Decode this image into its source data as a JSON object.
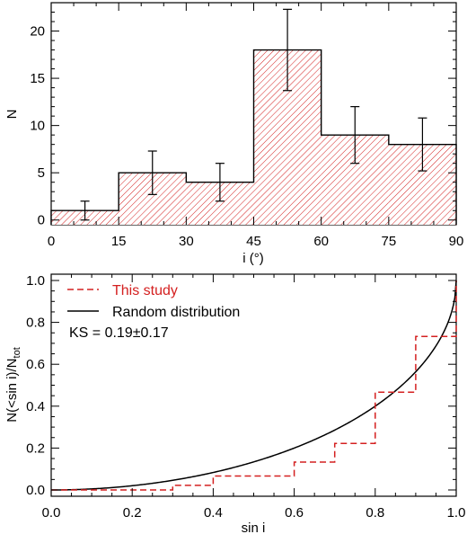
{
  "colors": {
    "accent": "#d42020",
    "axis": "#000000",
    "background": "#ffffff"
  },
  "chart_data": [
    {
      "type": "bar",
      "subtype": "histogram",
      "bins": [
        [
          0,
          15
        ],
        [
          15,
          30
        ],
        [
          30,
          45
        ],
        [
          45,
          60
        ],
        [
          60,
          75
        ],
        [
          75,
          90
        ]
      ],
      "values": [
        1,
        5,
        4,
        18,
        9,
        8
      ],
      "errors": [
        1.0,
        2.3,
        2.0,
        4.3,
        3.0,
        2.8
      ],
      "fill": "red diagonal hatch",
      "xlabel": "i (°)",
      "ylabel": "N",
      "xlim": [
        0,
        90
      ],
      "ylim": [
        -0.5,
        23
      ],
      "xticks": [
        "0",
        "15",
        "30",
        "45",
        "60",
        "75",
        "90"
      ],
      "yticks": [
        "0",
        "5",
        "10",
        "15",
        "20"
      ]
    },
    {
      "type": "line",
      "xlabel": "sin i",
      "ylabel_main": "N(<sin i)/N",
      "ylabel_sub": "tot",
      "xlim": [
        0,
        1
      ],
      "ylim": [
        -0.03,
        1.03
      ],
      "xticks": [
        "0.0",
        "0.2",
        "0.4",
        "0.6",
        "0.8",
        "1.0"
      ],
      "yticks": [
        "0.0",
        "0.2",
        "0.4",
        "0.6",
        "0.8",
        "1.0"
      ],
      "legend_position": "top-left",
      "series": [
        {
          "name": "This study",
          "style": "dashed-step",
          "color": "#d42020",
          "x": [
            0.0,
            0.2,
            0.3,
            0.4,
            0.6,
            0.7,
            0.8,
            0.9,
            1.0
          ],
          "y": [
            0.0,
            0.0,
            0.0222,
            0.0667,
            0.133,
            0.222,
            0.467,
            0.733,
            1.0
          ]
        },
        {
          "name": "Random distribution",
          "style": "solid",
          "color": "#000000",
          "function": "1 - sqrt(1 - x^2)"
        }
      ],
      "annotation": "KS = 0.19±0.17"
    }
  ]
}
